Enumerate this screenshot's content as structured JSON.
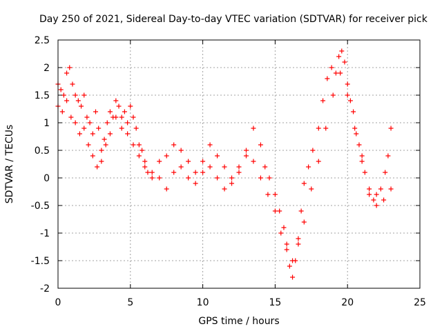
{
  "chart_data": {
    "type": "scatter",
    "title": "Day 250 of 2021, Sidereal Day-to-day VTEC variation (SDTVAR) for receiver pick",
    "xlabel": "GPS time / hours",
    "ylabel": "SDTVAR / TECUs",
    "xlim": [
      0,
      25
    ],
    "ylim": [
      -2,
      2.5
    ],
    "xticks": [
      "0",
      "5",
      "10",
      "15",
      "20",
      "25"
    ],
    "yticks": [
      "-2",
      "-1.5",
      "-1",
      "-0.5",
      "0",
      "0.5",
      "1",
      "1.5",
      "2",
      "2.5"
    ],
    "grid": true,
    "marker": "plus",
    "color": "#ff0000",
    "series": [
      {
        "x": [
          0.0,
          0.2,
          0.4,
          0.6,
          0.8,
          1.0,
          1.2,
          1.4,
          1.6,
          1.8,
          2.0,
          2.2,
          2.4,
          2.6,
          2.8,
          3.0,
          3.2,
          3.4,
          3.6,
          3.8,
          4.0,
          4.2,
          4.4,
          4.6,
          4.8,
          5.0,
          5.2,
          5.4,
          5.6,
          5.8,
          6.0,
          6.2,
          6.5,
          7.0,
          7.5,
          8.0,
          8.5,
          9.0,
          9.5,
          10.0,
          10.5,
          11.0,
          11.5,
          12.0,
          12.5,
          13.0,
          13.5,
          14.0,
          14.3,
          14.6,
          15.0,
          15.3,
          15.6,
          15.8,
          16.0,
          16.2,
          16.4,
          16.6,
          16.8,
          17.0,
          17.3,
          17.6,
          18.0,
          18.3,
          18.6,
          18.9,
          19.2,
          19.4,
          19.6,
          19.8,
          20.0,
          20.2,
          20.4,
          20.6,
          20.8,
          21.0,
          21.2,
          21.5,
          21.8,
          22.0,
          22.3,
          22.6,
          22.8,
          23.0
        ],
        "y": [
          1.7,
          1.6,
          1.5,
          1.9,
          2.0,
          1.7,
          1.5,
          1.4,
          1.3,
          1.5,
          1.1,
          1.0,
          0.8,
          1.2,
          0.9,
          0.5,
          0.7,
          1.0,
          1.2,
          1.1,
          1.4,
          1.3,
          1.1,
          1.2,
          1.0,
          1.3,
          1.1,
          0.9,
          0.6,
          0.5,
          0.3,
          0.1,
          0.0,
          0.3,
          0.4,
          0.6,
          0.5,
          0.3,
          0.1,
          0.3,
          0.6,
          0.4,
          0.2,
          0.0,
          0.1,
          0.5,
          0.9,
          0.6,
          0.2,
          0.0,
          -0.3,
          -0.6,
          -0.9,
          -1.2,
          -1.6,
          -1.8,
          -1.5,
          -1.1,
          -0.6,
          -0.1,
          0.2,
          0.5,
          0.9,
          1.4,
          1.8,
          2.0,
          1.9,
          2.2,
          2.3,
          2.1,
          1.7,
          1.4,
          1.2,
          0.8,
          0.6,
          0.4,
          0.1,
          -0.3,
          -0.4,
          -0.3,
          -0.2,
          0.1,
          0.4,
          0.9
        ]
      },
      {
        "x": [
          0.0,
          0.3,
          0.6,
          0.9,
          1.2,
          1.5,
          1.8,
          2.1,
          2.4,
          2.7,
          3.0,
          3.3,
          3.6,
          4.0,
          4.4,
          4.8,
          5.2,
          5.6,
          6.0,
          6.5,
          7.0,
          7.5,
          8.0,
          8.5,
          9.0,
          9.5,
          10.0,
          10.5,
          11.0,
          11.5,
          12.0,
          12.5,
          13.0,
          13.5,
          14.0,
          14.5,
          15.0,
          15.4,
          15.8,
          16.2,
          16.6,
          17.0,
          17.5,
          18.0,
          18.5,
          19.0,
          19.5,
          20.0,
          20.5,
          21.0,
          21.5,
          22.0,
          22.5,
          23.0
        ],
        "y": [
          1.3,
          1.2,
          1.4,
          1.1,
          1.0,
          0.8,
          0.9,
          0.6,
          0.4,
          0.2,
          0.3,
          0.6,
          0.8,
          1.1,
          0.9,
          0.8,
          0.6,
          0.4,
          0.2,
          0.1,
          0.0,
          -0.2,
          0.1,
          0.2,
          0.0,
          -0.1,
          0.1,
          0.2,
          0.0,
          -0.2,
          -0.1,
          0.2,
          0.4,
          0.3,
          0.0,
          -0.3,
          -0.6,
          -1.0,
          -1.3,
          -1.5,
          -1.2,
          -0.8,
          -0.2,
          0.3,
          0.9,
          1.5,
          1.9,
          1.5,
          0.9,
          0.3,
          -0.2,
          -0.5,
          -0.4,
          -0.2
        ]
      }
    ]
  }
}
